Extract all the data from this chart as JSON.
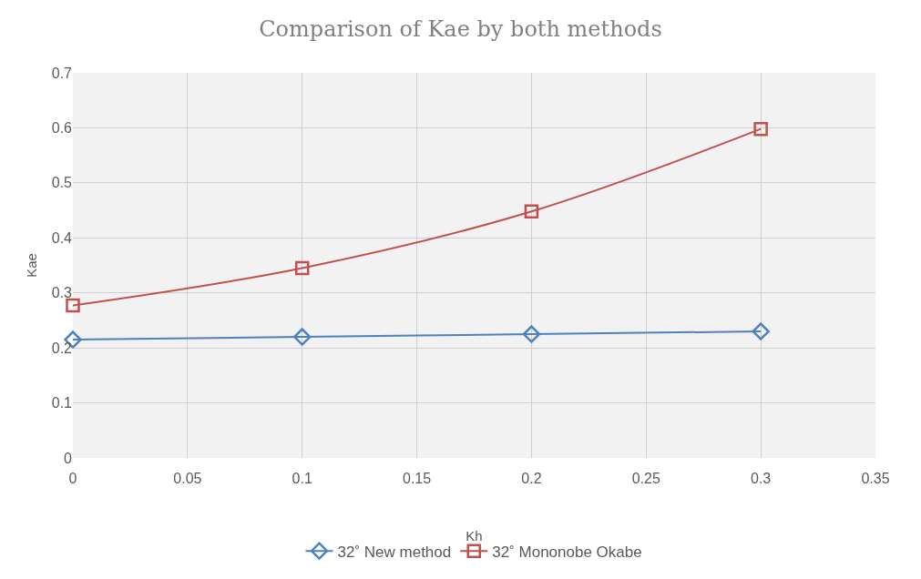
{
  "chart_data": {
    "type": "line",
    "title": "Comparison of Kae by both methods",
    "xlabel": "Kh",
    "ylabel": "Kae",
    "x": [
      0,
      0.1,
      0.2,
      0.3
    ],
    "series": [
      {
        "name": "32˚ New method",
        "color": "#4f81bd",
        "marker": "diamond",
        "values": [
          0.215,
          0.22,
          0.225,
          0.23
        ]
      },
      {
        "name": "32˚ Mononobe Okabe",
        "color": "#c0504d",
        "marker": "square",
        "values": [
          0.277,
          0.345,
          0.448,
          0.598
        ]
      }
    ],
    "xlim": [
      0,
      0.35
    ],
    "xticks": [
      0,
      0.05,
      0.1,
      0.15,
      0.2,
      0.25,
      0.3,
      0.35
    ],
    "ylim": [
      0,
      0.7
    ],
    "yticks": [
      0,
      0.1,
      0.2,
      0.3,
      0.4,
      0.5,
      0.6,
      0.7
    ],
    "grid": true,
    "legend": "bottom"
  }
}
